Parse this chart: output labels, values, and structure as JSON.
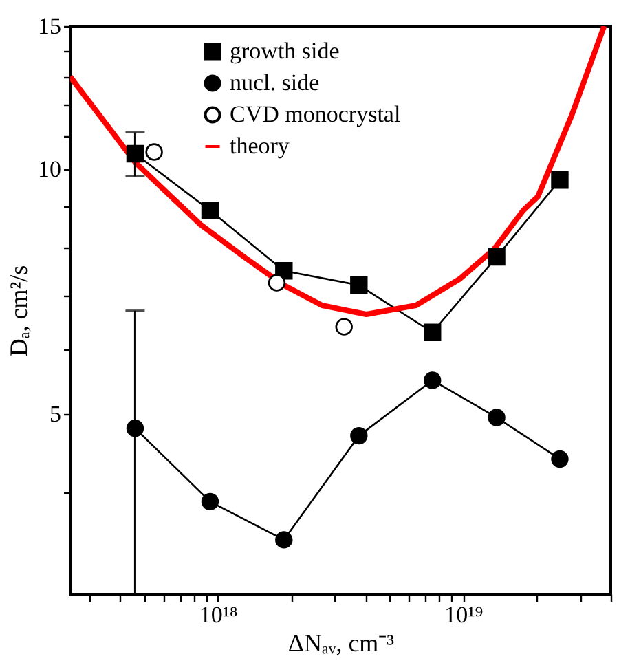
{
  "chart_data": {
    "type": "line",
    "xlabel": "ΔNₐᵥ, cm⁻³",
    "ylabel": "Dₐ, cm²/s",
    "log": "xy",
    "legend": "top",
    "grid": false,
    "xlim": [
      2.5e+17,
      4e+19
    ],
    "ylim": [
      3,
      15
    ],
    "xticks": [
      {
        "value": 3e+17,
        "label": null
      },
      {
        "value": 4e+17,
        "label": null
      },
      {
        "value": 5e+17,
        "label": null
      },
      {
        "value": 6e+17,
        "label": null
      },
      {
        "value": 7e+17,
        "label": null
      },
      {
        "value": 8e+17,
        "label": null
      },
      {
        "value": 9e+17,
        "label": null
      },
      {
        "value": 1e+18,
        "label": "10¹⁸"
      },
      {
        "value": 2e+18,
        "label": null
      },
      {
        "value": 3e+18,
        "label": null
      },
      {
        "value": 4e+18,
        "label": null
      },
      {
        "value": 5e+18,
        "label": null
      },
      {
        "value": 6e+18,
        "label": null
      },
      {
        "value": 7e+18,
        "label": null
      },
      {
        "value": 8e+18,
        "label": null
      },
      {
        "value": 9e+18,
        "label": null
      },
      {
        "value": 1e+19,
        "label": "10¹⁹"
      },
      {
        "value": 2e+19,
        "label": null
      },
      {
        "value": 3e+19,
        "label": null
      },
      {
        "value": 4e+19,
        "label": null
      }
    ],
    "yticks": [
      {
        "value": 4,
        "label": null
      },
      5,
      {
        "value": 6,
        "label": null
      },
      {
        "value": 7,
        "label": null
      },
      {
        "value": 8,
        "label": null
      },
      {
        "value": 9,
        "label": null
      },
      10,
      {
        "value": 11,
        "label": null
      },
      {
        "value": 12,
        "label": null
      },
      {
        "value": 13,
        "label": null
      },
      {
        "value": 14,
        "label": null
      },
      15
    ],
    "series": [
      {
        "name": "growth side",
        "marker": "square",
        "color": "#000000",
        "x": [
          4.6e+17,
          9.3e+17,
          1.86e+18,
          3.76e+18,
          7.5e+18,
          1.37e+19,
          2.48e+19
        ],
        "values": [
          10.45,
          8.9,
          7.5,
          7.2,
          6.3,
          7.8,
          9.7
        ],
        "errors": [
          [
            9.8,
            11.1
          ],
          null,
          null,
          null,
          null,
          null,
          null
        ]
      },
      {
        "name": "nucl. side",
        "marker": "circle",
        "color": "#000000",
        "x": [
          4.6e+17,
          9.3e+17,
          1.86e+18,
          3.76e+18,
          7.5e+18,
          1.37e+19,
          2.48e+19
        ],
        "values": [
          4.8,
          3.9,
          3.5,
          4.7,
          5.5,
          4.95,
          4.4
        ],
        "errors": [
          [
            3,
            6.7
          ],
          null,
          null,
          null,
          null,
          null,
          null
        ]
      },
      {
        "name": "CVD monocrystal",
        "type": "scatter",
        "marker": "circle",
        "color": "#000000",
        "x": [
          5.5e+17,
          1.74e+18,
          3.27e+18
        ],
        "values": [
          10.5,
          7.25,
          6.4
        ]
      },
      {
        "name": "theory",
        "marker": "none",
        "color": "#ff0000",
        "x": [
          2.5e+17,
          4.6e+17,
          8.5e+17,
          1.28e+18,
          1.86e+18,
          2.66e+18,
          4.03e+18,
          6.43e+18,
          9.7e+18,
          1.34e+19,
          1.76e+19,
          2.02e+19,
          2.77e+19,
          3.76e+19
        ],
        "values": [
          13.0,
          10.2,
          8.55,
          7.8,
          7.2,
          6.8,
          6.63,
          6.8,
          7.33,
          7.98,
          8.9,
          9.26,
          11.64,
          15.0
        ]
      }
    ]
  }
}
